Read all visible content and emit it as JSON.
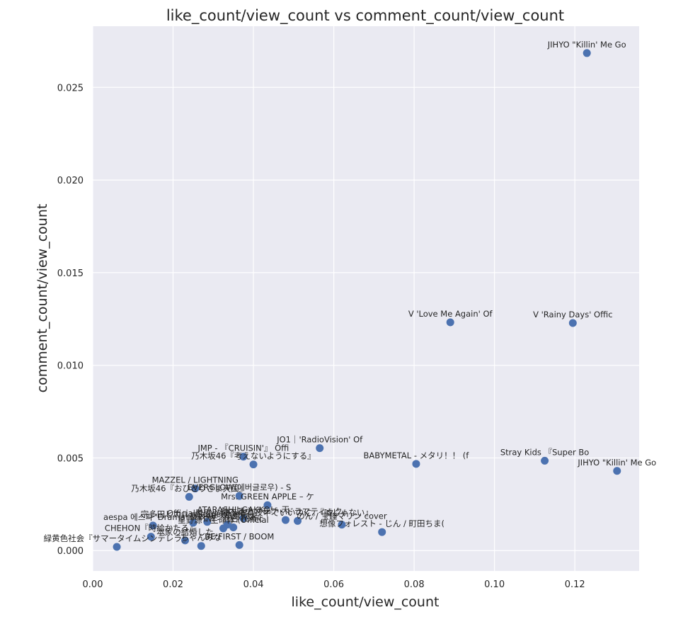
{
  "chart_data": {
    "type": "scatter",
    "title": "like_count/view_count vs comment_count/view_count",
    "xlabel": "like_count/view_count",
    "ylabel": "comment_count/view_count",
    "xlim": [
      0.0,
      0.136
    ],
    "ylim": [
      -0.0011,
      0.0283
    ],
    "xticks": [
      0.0,
      0.02,
      0.04,
      0.06,
      0.08,
      0.1,
      0.12
    ],
    "xtick_labels": [
      "0.00",
      "0.02",
      "0.04",
      "0.06",
      "0.08",
      "0.10",
      "0.12"
    ],
    "yticks": [
      0.0,
      0.005,
      0.01,
      0.015,
      0.02,
      0.025
    ],
    "ytick_labels": [
      "0.000",
      "0.005",
      "0.010",
      "0.015",
      "0.020",
      "0.025"
    ],
    "grid": true,
    "points": [
      {
        "x": 0.123,
        "y": 0.02685,
        "label": "JIHYO \"Killin' Me Go"
      },
      {
        "x": 0.089,
        "y": 0.01232,
        "label": "V 'Love Me Again' Of"
      },
      {
        "x": 0.1195,
        "y": 0.01228,
        "label": "V 'Rainy Days' Offic"
      },
      {
        "x": 0.0565,
        "y": 0.00553,
        "label": "JO1｜'RadioVision' Of"
      },
      {
        "x": 0.0375,
        "y": 0.00507,
        "label": "JMP - 『CRUISIN'』 Offi"
      },
      {
        "x": 0.04,
        "y": 0.00465,
        "label": "乃木坂46『考えないようにする』"
      },
      {
        "x": 0.0805,
        "y": 0.00468,
        "label": "BABYMETAL - メタリ！！ (f"
      },
      {
        "x": 0.1125,
        "y": 0.00485,
        "label": "Stray Kids 『Super Bo"
      },
      {
        "x": 0.1305,
        "y": 0.0043,
        "label": "JIHYO \"Killin' Me Go"
      },
      {
        "x": 0.0255,
        "y": 0.00335,
        "label": "MAZZEL / LIGHTNING"
      },
      {
        "x": 0.024,
        "y": 0.0029,
        "label": "乃木坂46『おひとりさま天国』"
      },
      {
        "x": 0.0365,
        "y": 0.00295,
        "label": "EVERGLOW(에버글로우) - S"
      },
      {
        "x": 0.0435,
        "y": 0.00245,
        "label": "Mrs. GREEN APPLE – ケ"
      },
      {
        "x": 0.0375,
        "y": 0.00175,
        "label": "ATARASHII GAKKO! - 天"
      },
      {
        "x": 0.048,
        "y": 0.00165,
        "label": "鈴木雅之『ラブ・ドラマティック』"
      },
      {
        "x": 0.051,
        "y": 0.0016,
        "label": "ずっと真夜中でいいのに。『嘘じゃない』"
      },
      {
        "x": 0.025,
        "y": 0.0015,
        "label": "宗多田ヒカル - Somewhere"
      },
      {
        "x": 0.0285,
        "y": 0.00155,
        "label": "Official髭男dism - ア"
      },
      {
        "x": 0.0335,
        "y": 0.0014,
        "label": "櫻坂46『承認欲求』"
      },
      {
        "x": 0.015,
        "y": 0.00135,
        "label": "aespa 에스파 'Drama' MV"
      },
      {
        "x": 0.0325,
        "y": 0.0012,
        "label": "星野源 - 生命体 (Official"
      },
      {
        "x": 0.035,
        "y": 0.00125,
        "label": "INI - 命日 (Offic"
      },
      {
        "x": 0.062,
        "y": 0.0014,
        "label": "のん / 宝鐘マリン cover"
      },
      {
        "x": 0.072,
        "y": 0.001,
        "label": "想像フォレスト - じん / 町田ちま("
      },
      {
        "x": 0.0145,
        "y": 0.00075,
        "label": "CHEHON『時給かたる』"
      },
      {
        "x": 0.023,
        "y": 0.00055,
        "label": "本家の結婚した"
      },
      {
        "x": 0.006,
        "y": 0.0002,
        "label": "緑黄色社会『サマータイムシンデレラ』"
      },
      {
        "x": 0.027,
        "y": 0.00025,
        "label": "ちゃんみな"
      },
      {
        "x": 0.0365,
        "y": 0.0003,
        "label": "BE:FIRST / BOOM"
      }
    ]
  }
}
